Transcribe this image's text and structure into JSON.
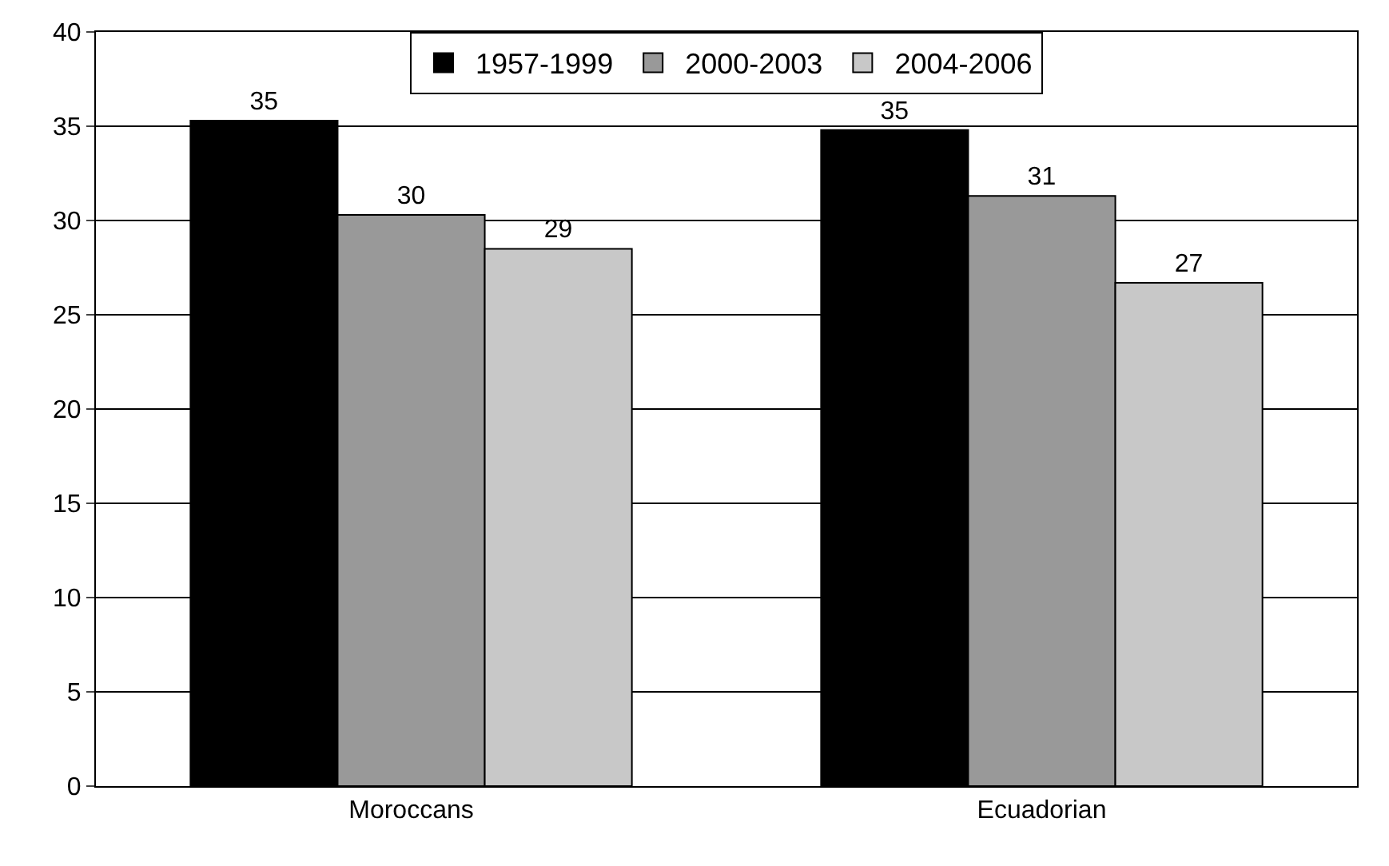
{
  "chart_data": {
    "type": "bar",
    "categories": [
      "Moroccans",
      "Ecuadorian"
    ],
    "series": [
      {
        "name": "1957-1999",
        "color": "#000000",
        "values": [
          35.3,
          34.8
        ],
        "value_labels": [
          "35",
          "35"
        ]
      },
      {
        "name": "2000-2003",
        "color": "#999999",
        "values": [
          30.3,
          31.3
        ],
        "value_labels": [
          "30",
          "31"
        ]
      },
      {
        "name": "2004-2006",
        "color": "#c8c8c8",
        "values": [
          28.5,
          26.7
        ],
        "value_labels": [
          "29",
          "27"
        ]
      }
    ],
    "ylim": [
      0,
      40
    ],
    "yticks": [
      0,
      5,
      10,
      15,
      20,
      25,
      30,
      35,
      40
    ],
    "grid": "y",
    "legend": "top"
  }
}
